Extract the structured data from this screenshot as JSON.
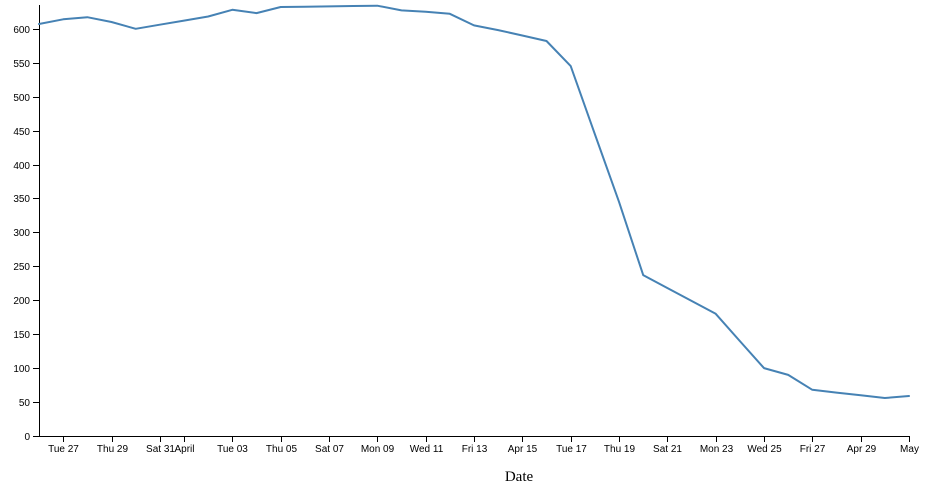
{
  "chart_data": {
    "type": "line",
    "title": "",
    "xlabel": "Date",
    "ylabel": "",
    "ylim": [
      0,
      635
    ],
    "grid": false,
    "line_color": "#4682b4",
    "x_ticks": [
      "Tue 27",
      "Thu 29",
      "Sat 31",
      "April",
      "Tue 03",
      "Thu 05",
      "Sat 07",
      "Mon 09",
      "Wed 11",
      "Fri 13",
      "Apr 15",
      "Tue 17",
      "Thu 19",
      "Sat 21",
      "Mon 23",
      "Wed 25",
      "Fri 27",
      "Apr 29",
      "May"
    ],
    "y_ticks": [
      "0",
      "50",
      "100",
      "150",
      "200",
      "250",
      "300",
      "350",
      "400",
      "450",
      "500",
      "550",
      "600"
    ],
    "series": [
      {
        "x": [
          "2018-03-26",
          "2018-03-27",
          "2018-03-28",
          "2018-03-29",
          "2018-03-30",
          "2018-03-31",
          "2018-04-01",
          "2018-04-02",
          "2018-04-03",
          "2018-04-04",
          "2018-04-05",
          "2018-04-06",
          "2018-04-07",
          "2018-04-08",
          "2018-04-09",
          "2018-04-10",
          "2018-04-11",
          "2018-04-12",
          "2018-04-13",
          "2018-04-14",
          "2018-04-15",
          "2018-04-16",
          "2018-04-17",
          "2018-04-18",
          "2018-04-19",
          "2018-04-20",
          "2018-04-21",
          "2018-04-22",
          "2018-04-23",
          "2018-04-24",
          "2018-04-25",
          "2018-04-26",
          "2018-04-27",
          "2018-04-28",
          "2018-04-29",
          "2018-04-30",
          "2018-05-01"
        ],
        "values": [
          607,
          614,
          617,
          610,
          600,
          606,
          612,
          618,
          628,
          623,
          632,
          632.5,
          633,
          633.5,
          634,
          627,
          625,
          622,
          605,
          598,
          590,
          582,
          545,
          445,
          345,
          237,
          218,
          199,
          180,
          140,
          100,
          90,
          68,
          64,
          60,
          56,
          59
        ]
      }
    ]
  }
}
